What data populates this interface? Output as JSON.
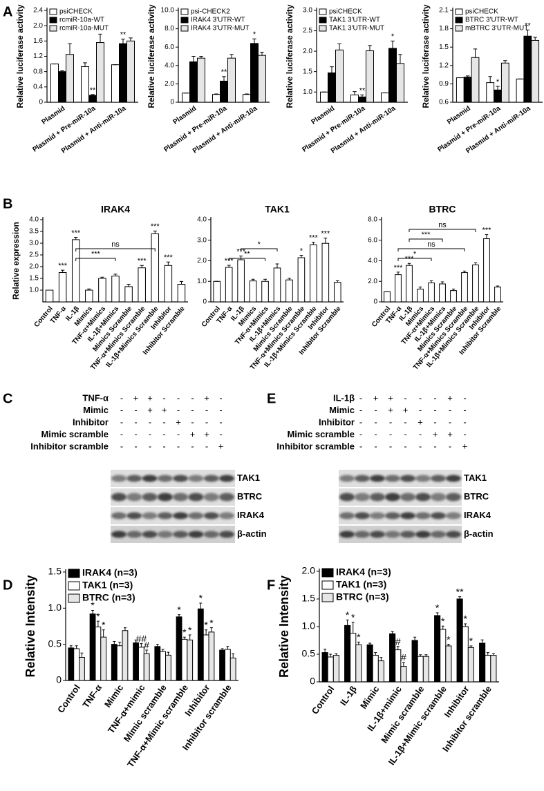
{
  "panel_labels": [
    "A",
    "B",
    "C",
    "D",
    "E",
    "F"
  ],
  "chart_data": [
    {
      "type": "bar",
      "ylabel": "Relative luciferase activity",
      "categories": [
        "Plasmid",
        "Plasmid + Pre-miR-10a",
        "Plasmid + Anti-miR-10a"
      ],
      "series": [
        {
          "name": "psiCHECK",
          "color": "#ffffff",
          "values": [
            1.0,
            0.93,
            0.98
          ],
          "errors": [
            0,
            0.1,
            0
          ],
          "annotations": [
            null,
            null,
            null
          ]
        },
        {
          "name": "rcmiR-10a-WT",
          "color": "#000000",
          "values": [
            0.8,
            0.18,
            1.53
          ],
          "errors": [
            0.02,
            0.02,
            0.12
          ],
          "annotations": [
            null,
            "**",
            "**"
          ]
        },
        {
          "name": "rcmiR-10a-MUT",
          "color": "#e6e6e6",
          "values": [
            1.25,
            1.56,
            1.6
          ],
          "errors": [
            0.28,
            0.22,
            0.08
          ],
          "annotations": [
            null,
            null,
            null
          ]
        }
      ],
      "ylim": [
        0,
        2.4
      ],
      "yticks": [
        0,
        0.4,
        0.8,
        1.2,
        1.6,
        {
          "value": 2,
          "label": "2.0"
        },
        2.4
      ],
      "legend": "upper-left"
    },
    {
      "type": "bar",
      "ylabel": "Relative luciferase activity",
      "categories": [
        "Plasmid",
        "Plasmid + Pre-miR-10a",
        "Plasmid + Anti-miR-10a"
      ],
      "series": [
        {
          "name": "psi-CHECK2",
          "color": "#ffffff",
          "values": [
            1.0,
            0.85,
            0.85
          ],
          "errors": [
            0,
            0.05,
            0.05
          ],
          "annotations": [
            null,
            null,
            null
          ]
        },
        {
          "name": "IRAK4 3'UTR-WT",
          "color": "#000000",
          "values": [
            4.4,
            2.3,
            6.4
          ],
          "errors": [
            0.6,
            0.5,
            0.5
          ],
          "annotations": [
            null,
            "**",
            "*"
          ]
        },
        {
          "name": "IRAK4 3'UTR-MUT",
          "color": "#e6e6e6",
          "values": [
            4.8,
            4.8,
            5.1
          ],
          "errors": [
            0.2,
            0.4,
            0.35
          ],
          "annotations": [
            null,
            null,
            null
          ]
        }
      ],
      "ylim": [
        0,
        10
      ],
      "yticks": [
        0,
        {
          "value": 2,
          "label": "2.0"
        },
        {
          "value": 4,
          "label": "4.0"
        },
        {
          "value": 6,
          "label": "6.0"
        },
        {
          "value": 8,
          "label": "8.0"
        },
        {
          "value": 10,
          "label": "10.0"
        }
      ],
      "legend": "upper-left"
    },
    {
      "type": "bar",
      "ylabel": "Relative luciferase activity",
      "categories": [
        "Plasmid",
        "Plasmid + Pre-miR-10a",
        "Plasmid + Anti-miR-10a"
      ],
      "series": [
        {
          "name": "psiCHECK",
          "color": "#ffffff",
          "values": [
            1.0,
            0.93,
            0.98
          ],
          "errors": [
            0,
            0.08,
            0
          ],
          "annotations": [
            null,
            null,
            null
          ]
        },
        {
          "name": "TAK1 3'UTR-WT",
          "color": "#000000",
          "values": [
            1.47,
            0.88,
            2.07
          ],
          "errors": [
            0.15,
            0.05,
            0.18
          ],
          "annotations": [
            null,
            "**",
            "*"
          ]
        },
        {
          "name": "TAK1 3'UTR-MUT",
          "color": "#e6e6e6",
          "values": [
            2.03,
            2.01,
            1.7
          ],
          "errors": [
            0.15,
            0.13,
            0.22
          ],
          "annotations": [
            null,
            null,
            null
          ]
        }
      ],
      "ylim": [
        0.75,
        3
      ],
      "yticks": [
        {
          "value": 1,
          "label": "1.0"
        },
        1.5,
        {
          "value": 2,
          "label": "2.0"
        },
        2.5,
        {
          "value": 3,
          "label": "3.0"
        }
      ],
      "legend": "upper-left"
    },
    {
      "type": "bar",
      "ylabel": "Relative luciferase activity",
      "categories": [
        "Plasmid",
        "Plasmid + Pre-miR-10a",
        "Plasmid + Anti-miR-10a"
      ],
      "series": [
        {
          "name": "psiCHECK",
          "color": "#ffffff",
          "values": [
            1.0,
            0.92,
            0.98
          ],
          "errors": [
            0,
            0.1,
            0
          ],
          "annotations": [
            null,
            null,
            null
          ]
        },
        {
          "name": "BTRC 3'UTR-WT",
          "color": "#000000",
          "values": [
            1.01,
            0.8,
            1.68
          ],
          "errors": [
            0.02,
            0.06,
            0.1
          ],
          "annotations": [
            null,
            "*",
            "**"
          ]
        },
        {
          "name": "mBTRC 3'UTR-MUT",
          "color": "#e6e6e6",
          "values": [
            1.33,
            1.24,
            1.61
          ],
          "errors": [
            0.14,
            0.04,
            0.05
          ],
          "annotations": [
            null,
            null,
            null
          ]
        }
      ],
      "ylim": [
        0.6,
        2.1
      ],
      "yticks": [
        0.6,
        0.9,
        1.2,
        1.5,
        1.8,
        2.1
      ],
      "legend": "upper-left"
    },
    {
      "type": "bar",
      "title": "IRAK4",
      "ylabel": "Relative expression",
      "categories": [
        "Control",
        "TNF-α",
        "IL-1β",
        "Mimics",
        "TNF-α+Mimics",
        "IL-1β+Mimics",
        "Mimics Scramble",
        "TNF-α+Mimics Scramble",
        "IL-1β+Mimics Scramble",
        "Inhibitor",
        "Inhibitor Scramble"
      ],
      "color": "#ffffff",
      "values": [
        1.0,
        1.75,
        3.15,
        1.0,
        1.5,
        1.6,
        1.15,
        1.95,
        3.4,
        2.05,
        1.25
      ],
      "errors": [
        0,
        0.1,
        0.1,
        0.05,
        0.05,
        0.08,
        0.1,
        0.1,
        0.12,
        0.15,
        0.12
      ],
      "annotations": [
        null,
        "***",
        "***",
        null,
        null,
        null,
        null,
        "***",
        "***",
        "***",
        null
      ],
      "brackets": [
        {
          "between": [
            "IL-1β",
            "IL-1β+Mimics"
          ],
          "label": "***"
        },
        {
          "between": [
            "IL-1β",
            "IL-1β+Mimics Scramble"
          ],
          "label": "ns"
        }
      ],
      "ylim": [
        0.5,
        4
      ],
      "yticks": [
        {
          "value": 1,
          "label": "1.0"
        },
        1.5,
        {
          "value": 2,
          "label": "2.0"
        },
        2.5,
        {
          "value": 3,
          "label": "3.0"
        },
        3.5,
        {
          "value": 4,
          "label": "4.0"
        }
      ]
    },
    {
      "type": "bar",
      "title": "TAK1",
      "categories": [
        "Control",
        "TNF-α",
        "IL-1β",
        "Mimics",
        "TNF-α+Mimics",
        "IL-1β+Mimics",
        "Mimics Scramble",
        "TNF-α+Mimics Scramble",
        "IL-1β+Mimics Scramble",
        "Inhibitor",
        "Inhibitor Scramble"
      ],
      "color": "#ffffff",
      "values": [
        1.0,
        1.68,
        2.05,
        1.02,
        1.0,
        1.65,
        1.07,
        2.15,
        2.78,
        2.85,
        0.95
      ],
      "errors": [
        0,
        0.1,
        0.18,
        0.08,
        0.1,
        0.2,
        0.08,
        0.12,
        0.12,
        0.25,
        0.08
      ],
      "annotations": [
        null,
        "***",
        "***",
        null,
        null,
        null,
        null,
        "*",
        "***",
        "***",
        null
      ],
      "brackets": [
        {
          "between": [
            "TNF-α",
            "TNF-α+Mimics"
          ],
          "label": "**"
        },
        {
          "between": [
            "IL-1β",
            "IL-1β+Mimics"
          ],
          "label": "*"
        }
      ],
      "ylim": [
        0,
        4
      ],
      "yticks": [
        0,
        {
          "value": 1,
          "label": "1.0"
        },
        {
          "value": 2,
          "label": "2.0"
        },
        {
          "value": 3,
          "label": "3.0"
        },
        {
          "value": 4,
          "label": "4.0"
        }
      ]
    },
    {
      "type": "bar",
      "title": "BTRC",
      "categories": [
        "Control",
        "TNF-α",
        "IL-1β",
        "Mimics",
        "TNF-α+Mimics",
        "IL-1β+Mimics",
        "Mimics Scramble",
        "TNF-α+Mimics Scramble",
        "IL-1β+Mimics Scramble",
        "Inhibitor",
        "Inhibitor Scramble"
      ],
      "color": "#ffffff",
      "values": [
        1.0,
        2.65,
        3.55,
        1.25,
        1.85,
        1.75,
        1.1,
        2.85,
        3.6,
        6.15,
        1.45
      ],
      "errors": [
        0,
        0.25,
        0.2,
        0.2,
        0.2,
        0.2,
        0.15,
        0.15,
        0.2,
        0.4,
        0.1
      ],
      "annotations": [
        null,
        "***",
        "***",
        null,
        null,
        null,
        null,
        null,
        null,
        "***",
        null
      ],
      "brackets": [
        {
          "between": [
            "TNF-α",
            "TNF-α+Mimics"
          ],
          "label": "*"
        },
        {
          "between": [
            "TNF-α",
            "TNF-α+Mimics Scramble"
          ],
          "label": "ns"
        },
        {
          "between": [
            "IL-1β",
            "IL-1β+Mimics"
          ],
          "label": "***"
        },
        {
          "between": [
            "IL-1β",
            "IL-1β+Mimics Scramble"
          ],
          "label": "ns"
        }
      ],
      "ylim": [
        0,
        8
      ],
      "yticks": [
        0,
        {
          "value": 2,
          "label": "2.0"
        },
        {
          "value": 4,
          "label": "4.0"
        },
        {
          "value": 6,
          "label": "6.0"
        },
        {
          "value": 8,
          "label": "8.0"
        }
      ]
    },
    {
      "type": "bar",
      "ylabel": "Relative Intensity",
      "categories": [
        "Control",
        "TNF-α",
        "Mimic",
        "TNF-α+mimic",
        "Mimic scramble",
        "TNF-α+Mimic scramble",
        "Inhibitor",
        "Inhibitor scramble"
      ],
      "series": [
        {
          "name": "IRAK4 (n=3)",
          "color": "#000000",
          "values": [
            0.45,
            0.92,
            0.5,
            0.52,
            0.47,
            0.88,
            0.99,
            0.42
          ],
          "errors": [
            0.03,
            0.05,
            0.04,
            0.04,
            0.03,
            0.03,
            0.08,
            0.02
          ],
          "annotations": [
            null,
            "*",
            null,
            null,
            null,
            "*",
            "*",
            null
          ]
        },
        {
          "name": "TAK1 (n=3)",
          "color": "#ffffff",
          "values": [
            0.44,
            0.74,
            0.48,
            0.46,
            0.4,
            0.57,
            0.63,
            0.43
          ],
          "errors": [
            0.04,
            0.08,
            0.05,
            0.05,
            0.03,
            0.03,
            0.07,
            0.04
          ],
          "annotations": [
            null,
            "*",
            null,
            "##",
            null,
            "*",
            "*",
            null
          ]
        },
        {
          "name": "BTRC (n=3)",
          "color": "#e6e6e6",
          "values": [
            0.32,
            0.6,
            0.69,
            0.37,
            0.35,
            0.56,
            0.67,
            0.31
          ],
          "errors": [
            0.06,
            0.1,
            0.04,
            0.05,
            0.04,
            0.07,
            0.06,
            0.06
          ],
          "annotations": [
            null,
            "*",
            null,
            "#",
            null,
            "*",
            "*",
            null
          ]
        }
      ],
      "ylim": [
        0,
        1.5
      ],
      "yticks": [
        0,
        0.5,
        {
          "value": 1,
          "label": "1.0"
        },
        1.5
      ],
      "legend": "upper-left"
    },
    {
      "type": "bar",
      "ylabel": "Relative Intensity",
      "categories": [
        "Control",
        "IL-1β",
        "Mimic",
        "IL-1β+mimic",
        "Mimic scramble",
        "IL-1β+Mimic scramble",
        "Inhibitor",
        "Inhibitor scramble"
      ],
      "series": [
        {
          "name": "IRAK4 (n=3)",
          "color": "#000000",
          "values": [
            0.53,
            1.02,
            0.67,
            0.87,
            0.75,
            1.2,
            1.5,
            0.7
          ],
          "errors": [
            0.06,
            0.1,
            0.03,
            0.04,
            0.06,
            0.05,
            0.04,
            0.06
          ],
          "annotations": [
            null,
            "*",
            null,
            null,
            null,
            "*",
            "**",
            null
          ]
        },
        {
          "name": "TAK1 (n=3)",
          "color": "#ffffff",
          "values": [
            0.45,
            0.88,
            0.48,
            0.58,
            0.46,
            0.95,
            1.0,
            0.48
          ],
          "errors": [
            0.05,
            0.2,
            0.05,
            0.06,
            0.03,
            0.06,
            0.05,
            0.05
          ],
          "annotations": [
            null,
            "*",
            null,
            "#",
            null,
            "*",
            "*",
            null
          ]
        },
        {
          "name": "BTRC (n=3)",
          "color": "#e6e6e6",
          "values": [
            0.48,
            0.67,
            0.38,
            0.28,
            0.46,
            0.65,
            0.62,
            0.48
          ],
          "errors": [
            0.03,
            0.05,
            0.06,
            0.07,
            0.03,
            0.03,
            0.03,
            0.03
          ],
          "annotations": [
            null,
            "*",
            null,
            "#",
            null,
            "*",
            "*",
            null
          ]
        }
      ],
      "ylim": [
        0,
        2
      ],
      "yticks": [
        0,
        0.5,
        {
          "value": 1,
          "label": "1.0"
        },
        1.5,
        {
          "value": 2,
          "label": "2.0"
        }
      ],
      "legend": "upper-left"
    }
  ],
  "blots": [
    {
      "treatments": [
        {
          "name": "TNF-α",
          "signs": [
            "-",
            "+",
            "+",
            "-",
            "-",
            "-",
            "+",
            "-"
          ]
        },
        {
          "name": "Mimic",
          "signs": [
            "-",
            "-",
            "+",
            "+",
            "-",
            "-",
            "-",
            "-"
          ]
        },
        {
          "name": "Inhibitor",
          "signs": [
            "-",
            "-",
            "-",
            "-",
            "+",
            "-",
            "-",
            "-"
          ]
        },
        {
          "name": "Mimic scramble",
          "signs": [
            "-",
            "-",
            "-",
            "-",
            "-",
            "+",
            "+",
            "-"
          ]
        },
        {
          "name": "Inhibitor scramble",
          "signs": [
            "-",
            "-",
            "-",
            "-",
            "-",
            "-",
            "-",
            "+"
          ]
        }
      ],
      "bands": [
        "TAK1",
        "BTRC",
        "IRAK4",
        "β-actin"
      ]
    },
    {
      "treatments": [
        {
          "name": "IL-1β",
          "signs": [
            "-",
            "+",
            "+",
            "-",
            "-",
            "-",
            "+",
            "-"
          ]
        },
        {
          "name": "Mimic",
          "signs": [
            "-",
            "-",
            "+",
            "+",
            "-",
            "-",
            "-",
            "-"
          ]
        },
        {
          "name": "Inhibitor",
          "signs": [
            "-",
            "-",
            "-",
            "-",
            "+",
            "-",
            "-",
            "-"
          ]
        },
        {
          "name": "Mimic scramble",
          "signs": [
            "-",
            "-",
            "-",
            "-",
            "-",
            "+",
            "+",
            "-"
          ]
        },
        {
          "name": "Inhibitor scramble",
          "signs": [
            "-",
            "-",
            "-",
            "-",
            "-",
            "-",
            "-",
            "+"
          ]
        }
      ],
      "bands": [
        "TAK1",
        "BTRC",
        "IRAK4",
        "β-actin"
      ]
    }
  ]
}
